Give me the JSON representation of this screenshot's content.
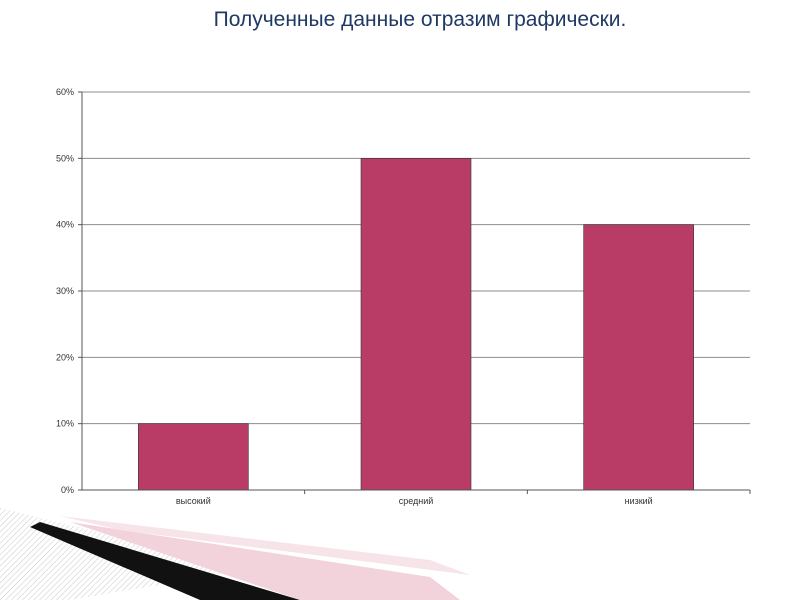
{
  "slide": {
    "title": "Полученные данные отразим графически."
  },
  "chart_data": {
    "type": "bar",
    "categories": [
      "высокий",
      "средний",
      "низкий"
    ],
    "values": [
      10,
      50,
      40
    ],
    "ylim": [
      0,
      60
    ],
    "y_ticks": [
      0,
      10,
      20,
      30,
      40,
      50,
      60
    ],
    "y_tick_labels": [
      "0%",
      "10%",
      "20%",
      "30%",
      "40%",
      "50%",
      "60%"
    ],
    "title": "",
    "xlabel": "",
    "ylabel": "",
    "grid": true,
    "legend": "none",
    "bar_color": "#b83c65"
  }
}
